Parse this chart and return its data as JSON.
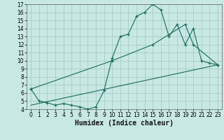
{
  "xlabel": "Humidex (Indice chaleur)",
  "bg_color": "#c8e8e4",
  "line_color": "#1a6b5a",
  "grid_color": "#a0c8c4",
  "xlim": [
    -0.5,
    23.5
  ],
  "ylim": [
    4,
    17
  ],
  "xticks": [
    0,
    1,
    2,
    3,
    4,
    5,
    6,
    7,
    8,
    9,
    10,
    11,
    12,
    13,
    14,
    15,
    16,
    17,
    18,
    19,
    20,
    21,
    22,
    23
  ],
  "yticks": [
    4,
    5,
    6,
    7,
    8,
    9,
    10,
    11,
    12,
    13,
    14,
    15,
    16,
    17
  ],
  "line1_x": [
    0,
    1,
    2,
    3,
    4,
    5,
    6,
    7,
    8,
    9,
    10,
    11,
    12,
    13,
    14,
    15,
    16,
    17,
    18,
    19,
    20,
    21,
    22,
    23
  ],
  "line1_y": [
    6.5,
    5.0,
    4.8,
    4.5,
    4.7,
    4.5,
    4.3,
    4.0,
    4.3,
    6.3,
    10.3,
    13.0,
    13.3,
    15.5,
    16.0,
    17.0,
    16.3,
    13.0,
    14.5,
    12.0,
    14.0,
    10.0,
    9.7,
    9.5
  ],
  "line2_x": [
    0,
    10,
    15,
    19,
    20,
    23
  ],
  "line2_y": [
    6.5,
    10.0,
    12.0,
    14.5,
    12.0,
    9.5
  ],
  "line3_x": [
    0,
    23
  ],
  "line3_y": [
    4.5,
    9.5
  ],
  "xlabel_fontsize": 7,
  "tick_fontsize": 5.5
}
